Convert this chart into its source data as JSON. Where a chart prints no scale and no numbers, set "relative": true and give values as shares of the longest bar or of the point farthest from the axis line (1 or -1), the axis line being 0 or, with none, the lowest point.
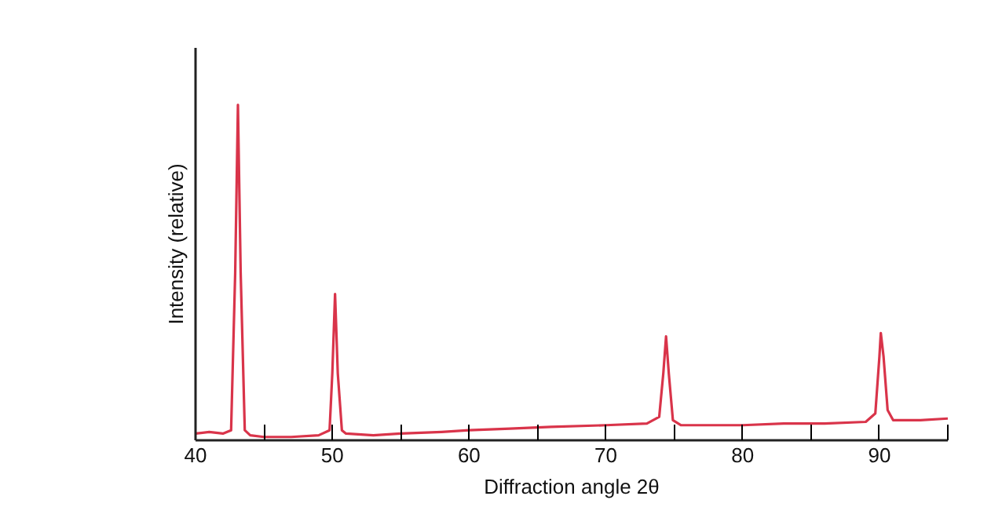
{
  "chart_data": {
    "type": "line",
    "relative": true,
    "xlabel": "Diffraction angle 2θ",
    "ylabel": "Intensity (relative)",
    "xlim": [
      40,
      95
    ],
    "xticks": [
      40,
      {
        "value": 45,
        "label": null
      },
      50,
      {
        "value": 55,
        "label": null
      },
      60,
      {
        "value": 65,
        "label": null
      },
      70,
      {
        "value": 75,
        "label": null
      },
      80,
      {
        "value": 85,
        "label": null
      },
      90,
      {
        "value": 95,
        "label": null
      }
    ],
    "grid": false,
    "marker": "none",
    "line_style": "solid",
    "series": [
      {
        "color": "#d9344a",
        "x": [
          40,
          41,
          42,
          42.6,
          42.9,
          43.1,
          43.3,
          43.6,
          44,
          45,
          47,
          49,
          49.8,
          50.0,
          50.2,
          50.4,
          50.7,
          51,
          53,
          55,
          58,
          60,
          63,
          66,
          70,
          73,
          73.9,
          74.2,
          74.4,
          74.6,
          74.9,
          75.5,
          78,
          80,
          83,
          86,
          89,
          89.7,
          90.0,
          90.1,
          90.3,
          90.6,
          91,
          93,
          95
        ],
        "values": [
          0.02,
          0.025,
          0.02,
          0.03,
          0.5,
          1.0,
          0.5,
          0.03,
          0.015,
          0.01,
          0.01,
          0.015,
          0.03,
          0.2,
          0.436,
          0.2,
          0.03,
          0.02,
          0.015,
          0.02,
          0.025,
          0.03,
          0.035,
          0.04,
          0.045,
          0.05,
          0.07,
          0.2,
          0.31,
          0.2,
          0.06,
          0.045,
          0.045,
          0.045,
          0.05,
          0.05,
          0.055,
          0.08,
          0.25,
          0.32,
          0.25,
          0.09,
          0.06,
          0.06,
          0.065
        ]
      }
    ]
  }
}
